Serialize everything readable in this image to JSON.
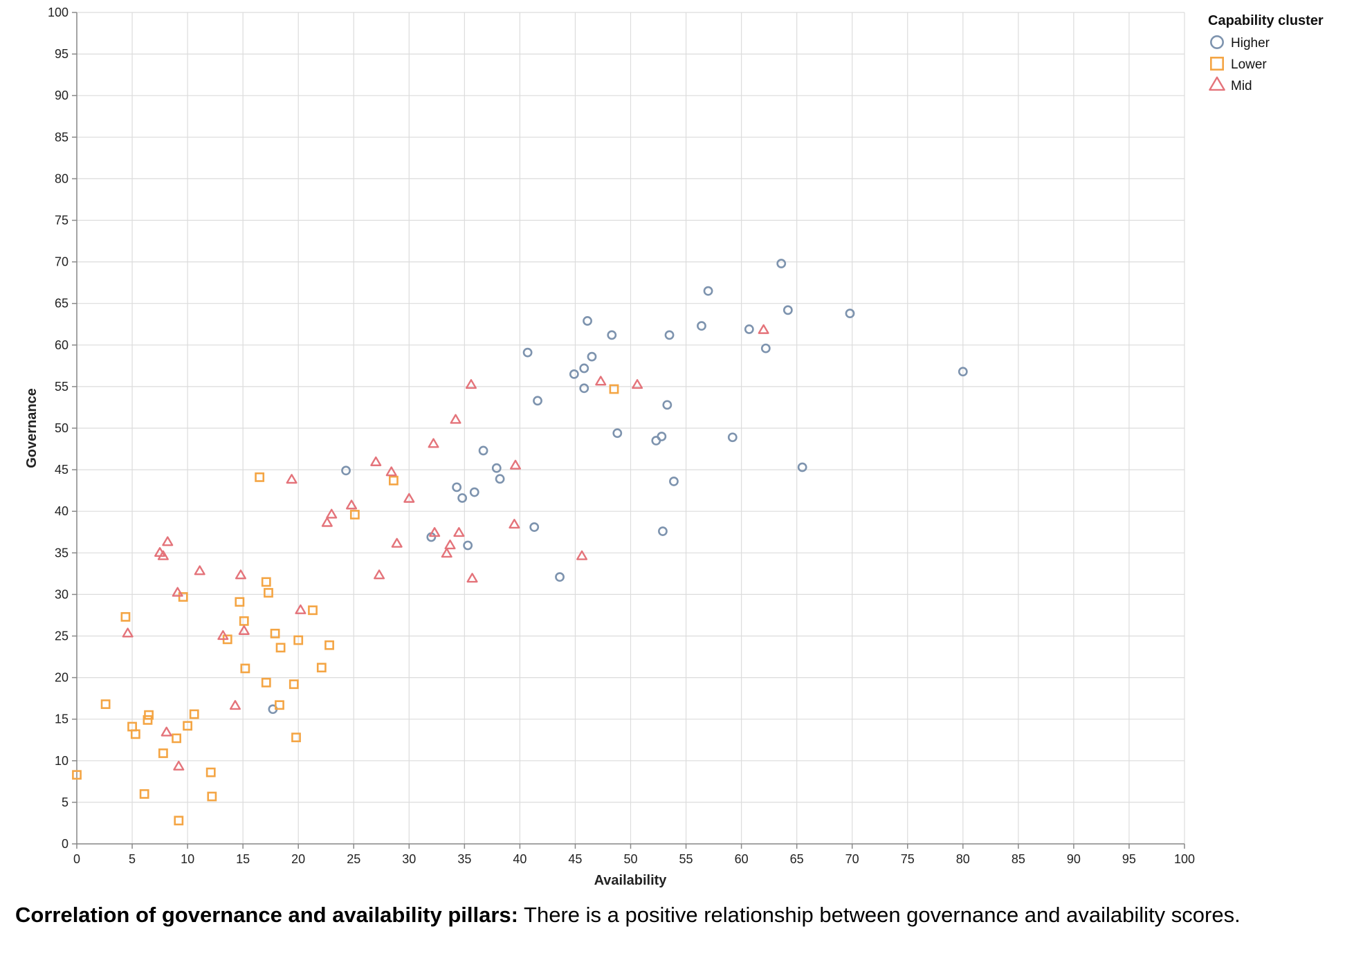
{
  "chart_data": {
    "type": "scatter",
    "title": "",
    "xlabel": "Availability",
    "ylabel": "Governance",
    "xlim": [
      0,
      100
    ],
    "ylim": [
      0,
      100
    ],
    "xticks": [
      0,
      5,
      10,
      15,
      20,
      25,
      30,
      35,
      40,
      45,
      50,
      55,
      60,
      65,
      70,
      75,
      80,
      85,
      90,
      95,
      100
    ],
    "yticks": [
      0,
      5,
      10,
      15,
      20,
      25,
      30,
      35,
      40,
      45,
      50,
      55,
      60,
      65,
      70,
      75,
      80,
      85,
      90,
      95,
      100
    ],
    "grid": true,
    "legend": {
      "title": "Capability cluster",
      "position": "top-right",
      "entries": [
        {
          "name": "Higher",
          "shape": "circle",
          "color": "#7d93ae"
        },
        {
          "name": "Lower",
          "shape": "square",
          "color": "#f4a544"
        },
        {
          "name": "Mid",
          "shape": "triangle",
          "color": "#e4737a"
        }
      ]
    },
    "series": [
      {
        "name": "Higher",
        "shape": "circle",
        "color": "#7d93ae",
        "points": [
          [
            63.6,
            69.8
          ],
          [
            57.0,
            66.5
          ],
          [
            64.2,
            64.2
          ],
          [
            46.1,
            62.9
          ],
          [
            69.8,
            63.8
          ],
          [
            56.4,
            62.3
          ],
          [
            60.7,
            61.9
          ],
          [
            48.3,
            61.2
          ],
          [
            53.5,
            61.2
          ],
          [
            62.2,
            59.6
          ],
          [
            40.7,
            59.1
          ],
          [
            46.5,
            58.6
          ],
          [
            45.8,
            57.2
          ],
          [
            44.9,
            56.5
          ],
          [
            45.8,
            54.8
          ],
          [
            80.0,
            56.8
          ],
          [
            41.6,
            53.3
          ],
          [
            53.3,
            52.8
          ],
          [
            48.8,
            49.4
          ],
          [
            52.8,
            49.0
          ],
          [
            52.3,
            48.5
          ],
          [
            59.2,
            48.9
          ],
          [
            36.7,
            47.3
          ],
          [
            24.3,
            44.9
          ],
          [
            37.9,
            45.2
          ],
          [
            65.5,
            45.3
          ],
          [
            38.2,
            43.9
          ],
          [
            53.9,
            43.6
          ],
          [
            34.3,
            42.9
          ],
          [
            35.9,
            42.3
          ],
          [
            34.8,
            41.6
          ],
          [
            41.3,
            38.1
          ],
          [
            52.9,
            37.6
          ],
          [
            32.0,
            36.9
          ],
          [
            35.3,
            35.9
          ],
          [
            43.6,
            32.1
          ],
          [
            17.7,
            16.2
          ]
        ]
      },
      {
        "name": "Lower",
        "shape": "square",
        "color": "#f4a544",
        "points": [
          [
            48.5,
            54.7
          ],
          [
            16.5,
            44.1
          ],
          [
            28.6,
            43.7
          ],
          [
            25.1,
            39.6
          ],
          [
            17.1,
            31.5
          ],
          [
            17.3,
            30.2
          ],
          [
            9.6,
            29.7
          ],
          [
            14.7,
            29.1
          ],
          [
            21.3,
            28.1
          ],
          [
            4.4,
            27.3
          ],
          [
            15.1,
            26.8
          ],
          [
            17.9,
            25.3
          ],
          [
            13.6,
            24.6
          ],
          [
            20.0,
            24.5
          ],
          [
            22.8,
            23.9
          ],
          [
            18.4,
            23.6
          ],
          [
            15.2,
            21.1
          ],
          [
            22.1,
            21.2
          ],
          [
            17.1,
            19.4
          ],
          [
            19.6,
            19.2
          ],
          [
            2.6,
            16.8
          ],
          [
            18.3,
            16.7
          ],
          [
            6.5,
            15.5
          ],
          [
            10.6,
            15.6
          ],
          [
            6.4,
            14.9
          ],
          [
            5.0,
            14.1
          ],
          [
            10.0,
            14.2
          ],
          [
            5.3,
            13.2
          ],
          [
            9.0,
            12.7
          ],
          [
            19.8,
            12.8
          ],
          [
            7.8,
            10.9
          ],
          [
            0.0,
            8.3
          ],
          [
            12.1,
            8.6
          ],
          [
            6.1,
            6.0
          ],
          [
            12.2,
            5.7
          ],
          [
            9.2,
            2.8
          ]
        ]
      },
      {
        "name": "Mid",
        "shape": "triangle",
        "color": "#e4737a",
        "points": [
          [
            62.0,
            61.8
          ],
          [
            47.3,
            55.6
          ],
          [
            50.6,
            55.2
          ],
          [
            35.6,
            55.2
          ],
          [
            34.2,
            51.0
          ],
          [
            32.2,
            48.1
          ],
          [
            27.0,
            45.9
          ],
          [
            39.6,
            45.5
          ],
          [
            28.4,
            44.7
          ],
          [
            19.4,
            43.8
          ],
          [
            30.0,
            41.5
          ],
          [
            24.8,
            40.7
          ],
          [
            23.0,
            39.6
          ],
          [
            22.6,
            38.6
          ],
          [
            39.5,
            38.4
          ],
          [
            34.5,
            37.4
          ],
          [
            32.3,
            37.4
          ],
          [
            8.2,
            36.3
          ],
          [
            28.9,
            36.1
          ],
          [
            33.7,
            35.9
          ],
          [
            7.5,
            35.0
          ],
          [
            7.8,
            34.6
          ],
          [
            33.4,
            34.9
          ],
          [
            45.6,
            34.6
          ],
          [
            11.1,
            32.8
          ],
          [
            14.8,
            32.3
          ],
          [
            27.3,
            32.3
          ],
          [
            35.7,
            31.9
          ],
          [
            9.1,
            30.2
          ],
          [
            20.2,
            28.1
          ],
          [
            15.1,
            25.6
          ],
          [
            4.6,
            25.3
          ],
          [
            13.2,
            25.0
          ],
          [
            14.3,
            16.6
          ],
          [
            8.1,
            13.4
          ],
          [
            9.2,
            9.3
          ]
        ]
      }
    ]
  },
  "caption": {
    "bold": "Correlation of governance and availability pillars:",
    "text": " There is a positive relationship between governance and availability scores."
  }
}
